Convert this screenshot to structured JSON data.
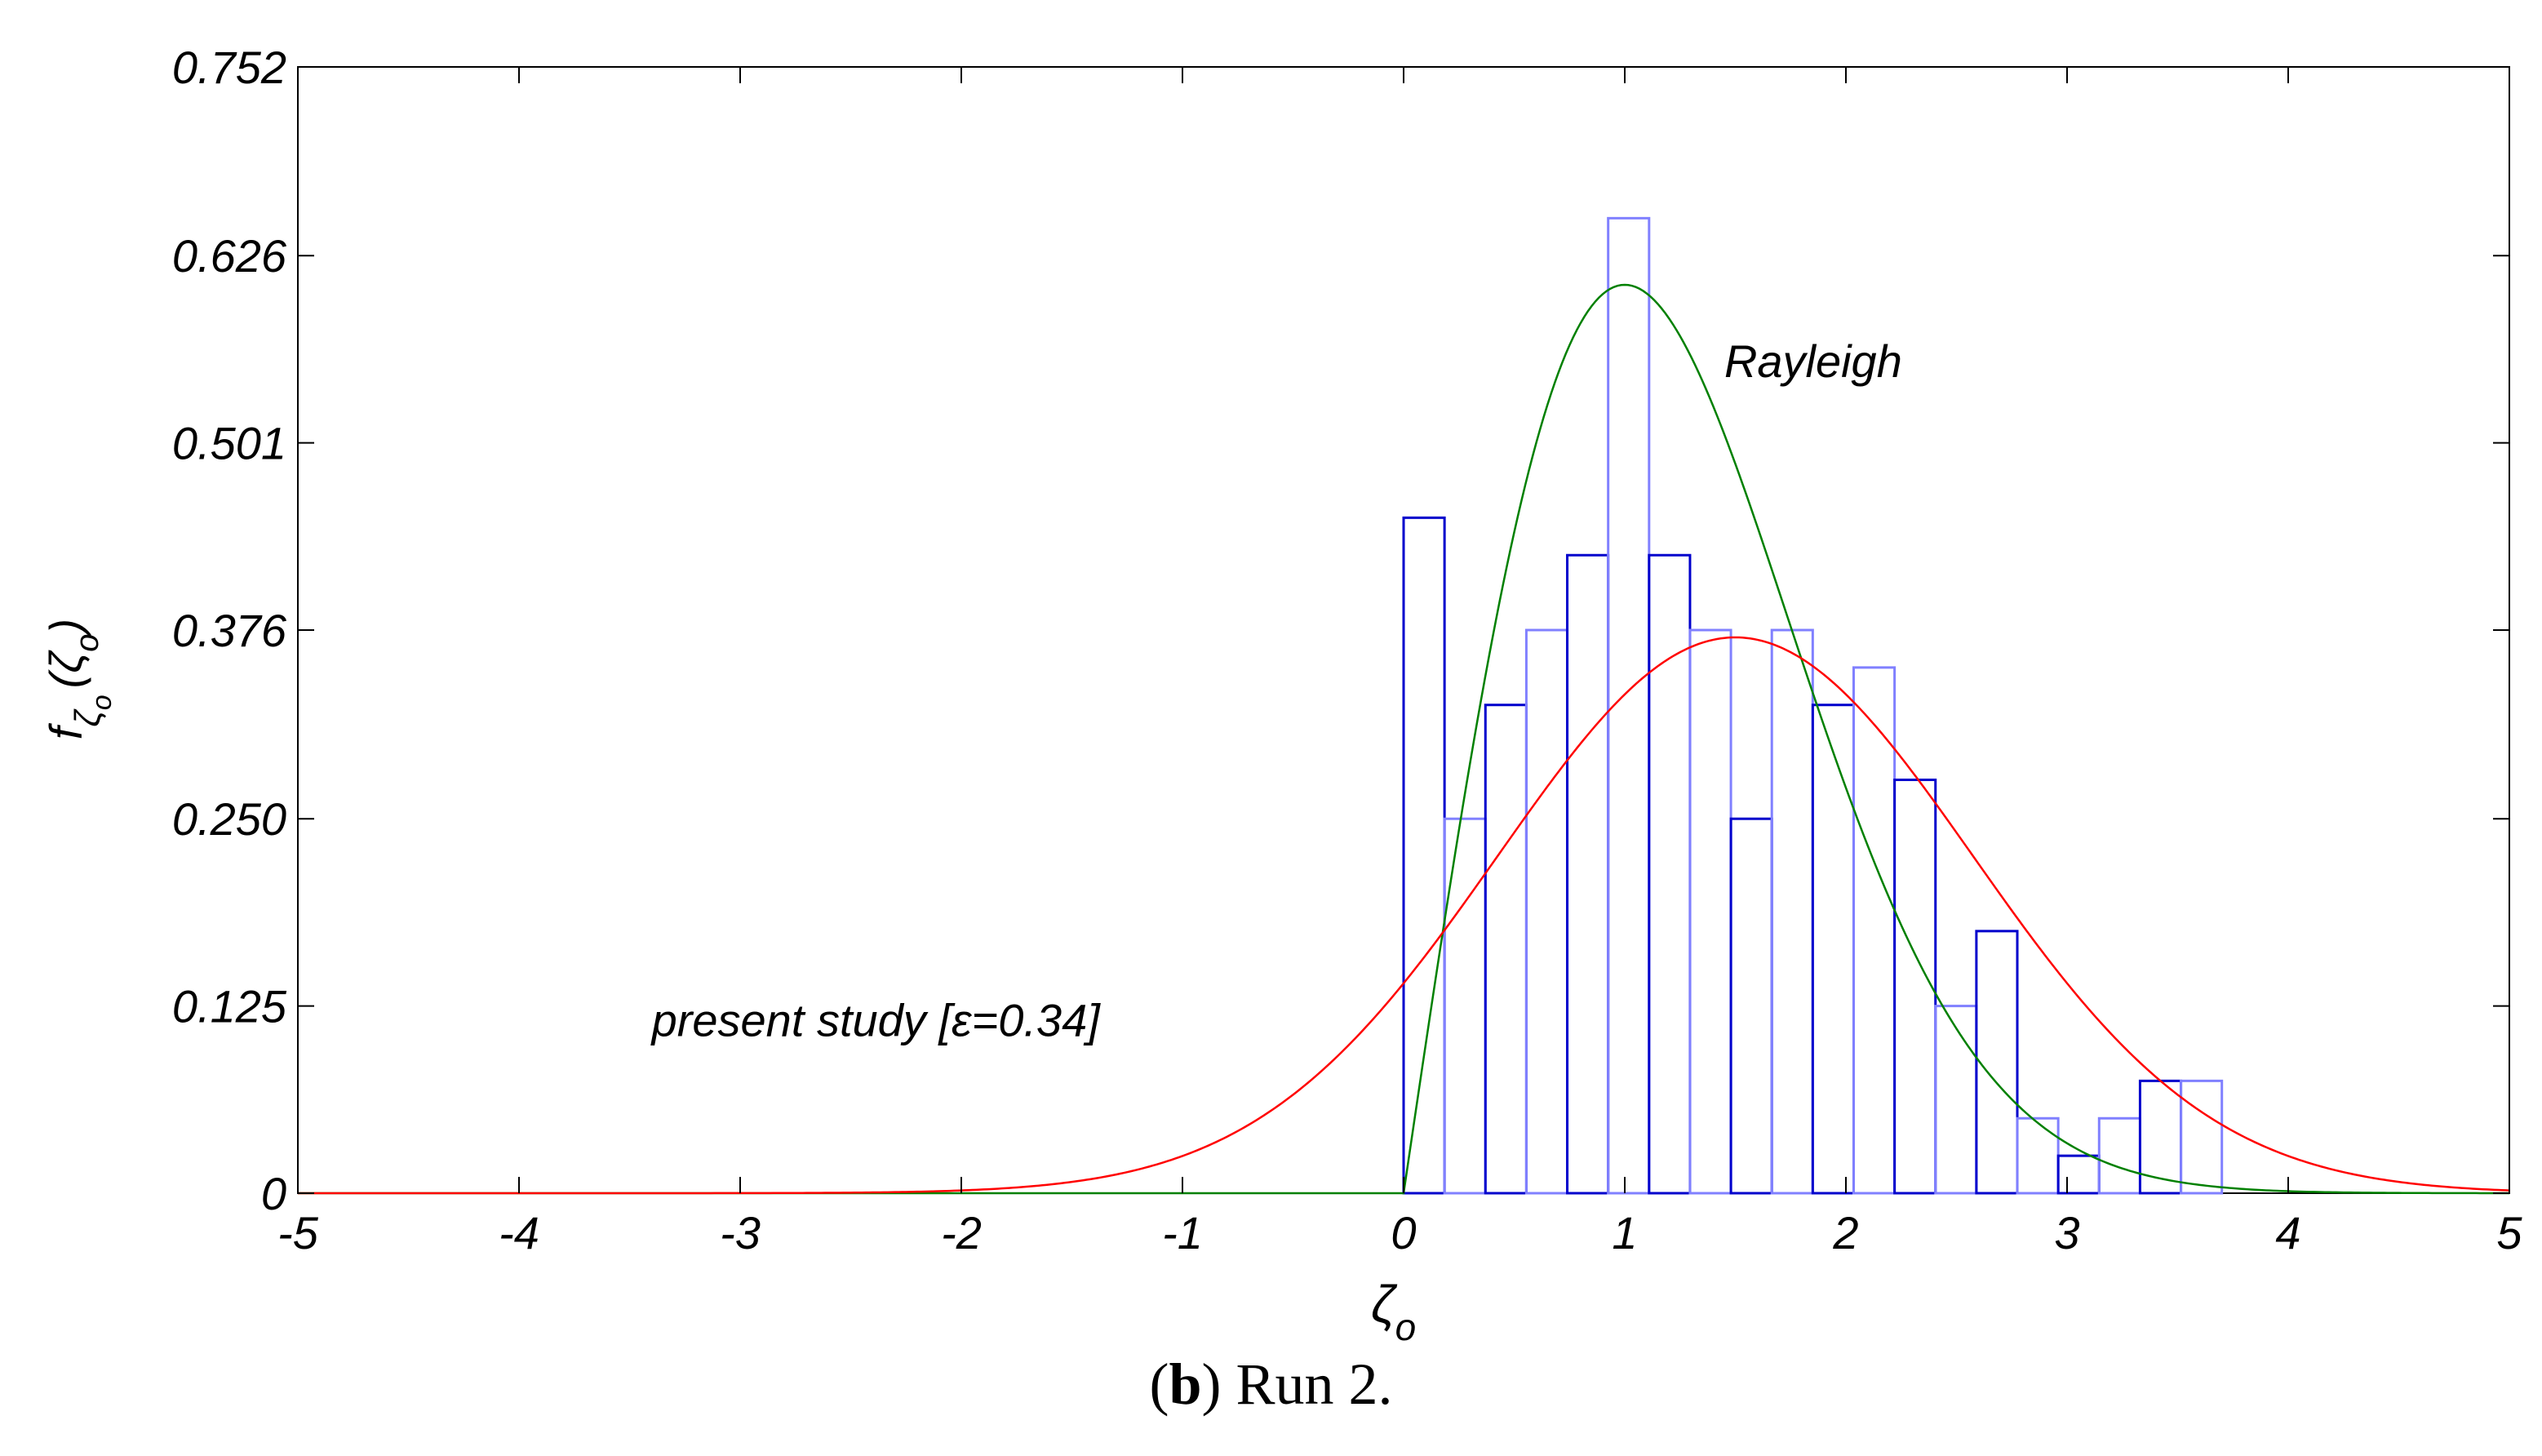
{
  "caption": {
    "letter": "b",
    "text": ") Run 2.",
    "open": "("
  },
  "chart_data": {
    "type": "bar",
    "xlabel": "ζo",
    "ylabel": "fζo(ζo)",
    "xlim": [
      -5,
      5
    ],
    "ylim": [
      0,
      0.752
    ],
    "xticks": [
      "-5",
      "-4",
      "-3",
      "-2",
      "-1",
      "0",
      "1",
      "2",
      "3",
      "4",
      "5"
    ],
    "yticks": [
      "0",
      "0.125",
      "0.250",
      "0.376",
      "0.501",
      "0.626",
      "0.752"
    ],
    "histogram_bins": [
      {
        "left": 0.0,
        "right": 0.185,
        "value": 0.451
      },
      {
        "left": 0.185,
        "right": 0.37,
        "value": 0.25
      },
      {
        "left": 0.37,
        "right": 0.555,
        "value": 0.326
      },
      {
        "left": 0.555,
        "right": 0.74,
        "value": 0.376
      },
      {
        "left": 0.74,
        "right": 0.925,
        "value": 0.426
      },
      {
        "left": 0.925,
        "right": 1.11,
        "value": 0.651
      },
      {
        "left": 1.11,
        "right": 1.295,
        "value": 0.426
      },
      {
        "left": 1.295,
        "right": 1.48,
        "value": 0.376
      },
      {
        "left": 1.48,
        "right": 1.665,
        "value": 0.25
      },
      {
        "left": 1.665,
        "right": 1.85,
        "value": 0.376
      },
      {
        "left": 1.85,
        "right": 2.035,
        "value": 0.326
      },
      {
        "left": 2.035,
        "right": 2.22,
        "value": 0.351
      },
      {
        "left": 2.22,
        "right": 2.405,
        "value": 0.276
      },
      {
        "left": 2.405,
        "right": 2.59,
        "value": 0.125
      },
      {
        "left": 2.59,
        "right": 2.775,
        "value": 0.175
      },
      {
        "left": 2.775,
        "right": 2.96,
        "value": 0.05
      },
      {
        "left": 2.96,
        "right": 3.145,
        "value": 0.025
      },
      {
        "left": 3.145,
        "right": 3.33,
        "value": 0.05
      },
      {
        "left": 3.33,
        "right": 3.515,
        "value": 0.075
      },
      {
        "left": 3.515,
        "right": 3.7,
        "value": 0.075
      }
    ],
    "series": [
      {
        "name": "Rayleigh",
        "kind": "rayleigh",
        "sigma": 1.0,
        "color": "#008000"
      },
      {
        "name": "present study [ε=0.34]",
        "kind": "normal",
        "mean": 1.5,
        "sd": 1.075,
        "color": "#ff0000"
      }
    ],
    "annotations": [
      {
        "text": "Rayleigh",
        "x": 1.45,
        "y": 0.545
      },
      {
        "text": "present study [ε=0.34]",
        "x": -3.4,
        "y": 0.105
      }
    ],
    "colors": {
      "bars_dark": "#0000cc",
      "bars_light": "#8080ff"
    },
    "grid": false
  }
}
